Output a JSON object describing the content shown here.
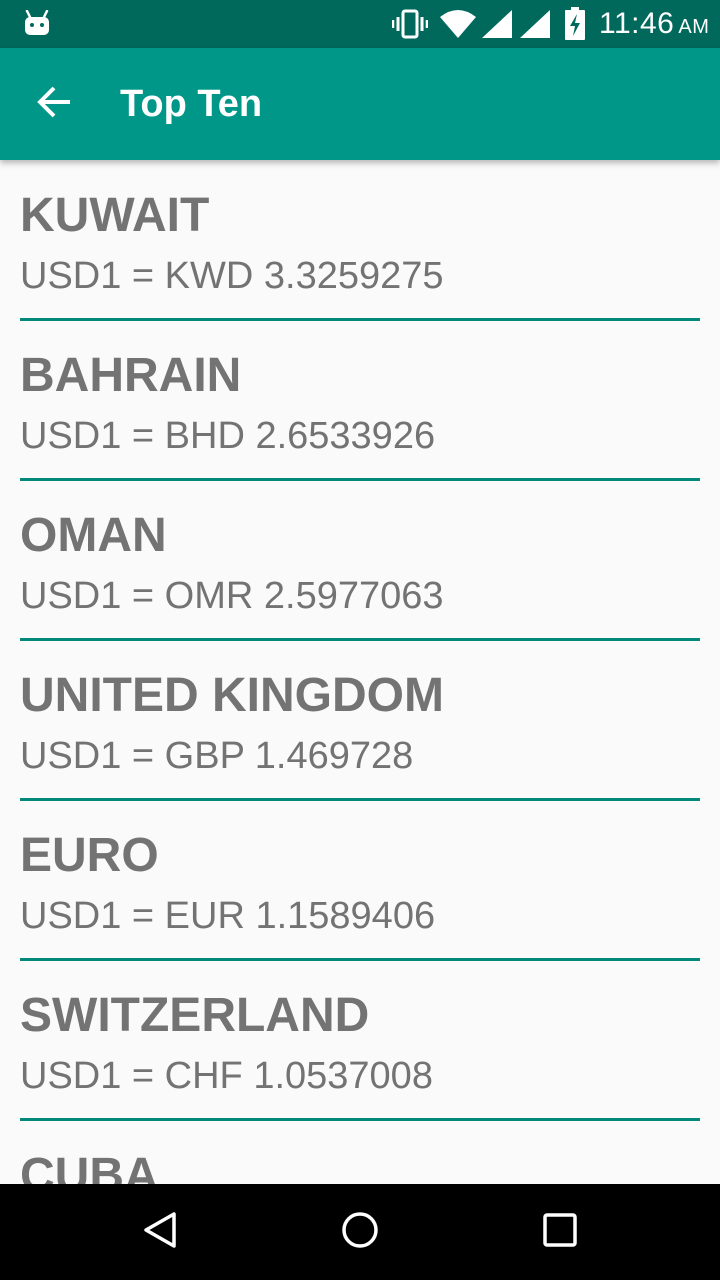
{
  "status_bar": {
    "time": "11:46",
    "ampm": "AM",
    "icons": [
      "android-icon",
      "vibrate-icon",
      "wifi-icon",
      "signal-icon",
      "signal-icon",
      "battery-charging-icon"
    ]
  },
  "app_bar": {
    "title": "Top Ten",
    "back_icon": "arrow-back-icon"
  },
  "rates": [
    {
      "country": "KUWAIT",
      "rate": "USD1 = KWD 3.3259275"
    },
    {
      "country": "BAHRAIN",
      "rate": "USD1 = BHD 2.6533926"
    },
    {
      "country": "OMAN",
      "rate": "USD1 = OMR 2.5977063"
    },
    {
      "country": "UNITED KINGDOM",
      "rate": "USD1 = GBP 1.469728"
    },
    {
      "country": "EURO",
      "rate": "USD1 = EUR 1.1589406"
    },
    {
      "country": "SWITZERLAND",
      "rate": "USD1 = CHF 1.0537008"
    },
    {
      "country": "CUBA",
      "rate": ""
    }
  ],
  "nav_bar": {
    "icons": [
      "nav-back-icon",
      "nav-home-icon",
      "nav-recents-icon"
    ]
  },
  "colors": {
    "status_bar": "#00695c",
    "app_bar": "#009688",
    "divider": "#00897b",
    "text": "#737373"
  }
}
